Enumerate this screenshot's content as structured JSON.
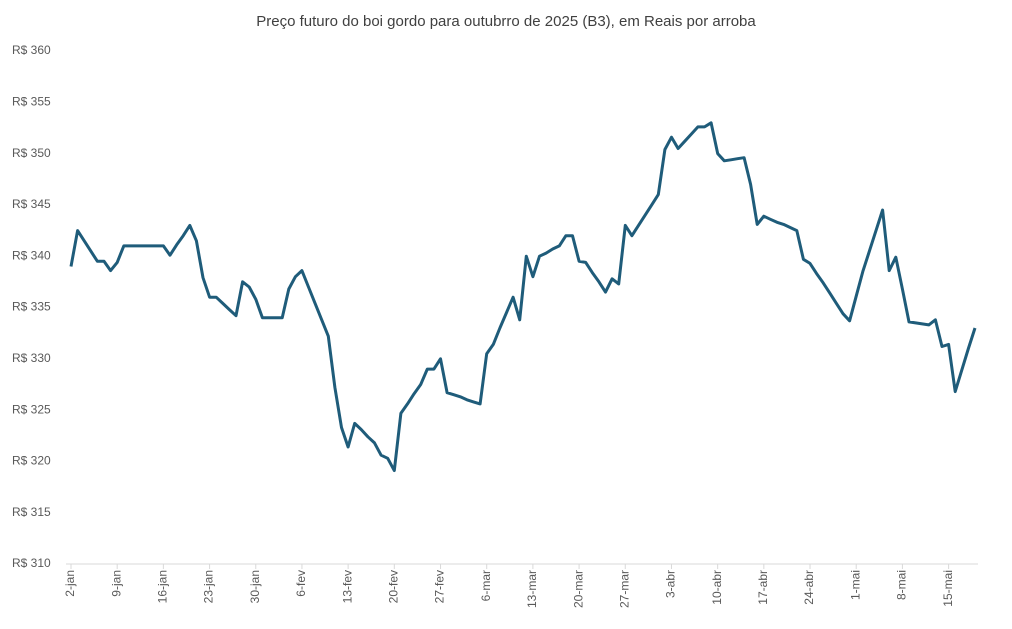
{
  "chart_data": {
    "type": "line",
    "title": "Preço futuro do boi gordo para outubrro de 2025 (B3), em Reais por arroba",
    "categories": [
      "2-jan",
      null,
      null,
      null,
      null,
      null,
      null,
      "9-jan",
      null,
      null,
      null,
      null,
      null,
      null,
      "16-jan",
      null,
      null,
      null,
      null,
      null,
      null,
      "23-jan",
      null,
      null,
      null,
      null,
      null,
      null,
      "30-jan",
      null,
      null,
      null,
      null,
      null,
      null,
      "6-fev",
      null,
      null,
      null,
      null,
      null,
      null,
      "13-fev",
      null,
      null,
      null,
      null,
      null,
      null,
      "20-fev",
      null,
      null,
      null,
      null,
      null,
      null,
      "27-fev",
      null,
      null,
      null,
      null,
      null,
      null,
      "6-mar",
      null,
      null,
      null,
      null,
      null,
      null,
      "13-mar",
      null,
      null,
      null,
      null,
      null,
      null,
      "20-mar",
      null,
      null,
      null,
      null,
      null,
      null,
      "27-mar",
      null,
      null,
      null,
      null,
      null,
      null,
      "3-abr",
      null,
      null,
      null,
      null,
      null,
      null,
      "10-abr",
      null,
      null,
      null,
      null,
      null,
      null,
      "17-abr",
      null,
      null,
      null,
      null,
      null,
      null,
      "24-abr",
      null,
      null,
      null,
      null,
      null,
      null,
      "1-mai",
      null,
      null,
      null,
      null,
      null,
      null,
      "8-mai",
      null,
      null,
      null,
      null,
      null,
      null,
      "15-mai",
      null,
      null,
      null,
      null
    ],
    "values": [
      339,
      342.5,
      341.5,
      340.5,
      339.5,
      339.5,
      338.6,
      339.4,
      341,
      341,
      341,
      341,
      341,
      341,
      341,
      340.1,
      341.1,
      342,
      343,
      341.5,
      337.9,
      336,
      336,
      335.4,
      334.8,
      334.2,
      337.5,
      337,
      335.8,
      334,
      334,
      334,
      334,
      336.8,
      338,
      338.6,
      337,
      335.4,
      333.8,
      332.2,
      327.2,
      323.3,
      321.4,
      323.7,
      323.1,
      322.4,
      321.8,
      320.6,
      320.3,
      319.1,
      324.7,
      325.6,
      326.6,
      327.5,
      329,
      329,
      330,
      326.7,
      326.5,
      326.3,
      326,
      325.8,
      325.6,
      330.5,
      331.4,
      333,
      334.5,
      336,
      333.8,
      340,
      338,
      340,
      340.3,
      340.7,
      341,
      342,
      342,
      339.5,
      339.4,
      338.4,
      337.5,
      336.5,
      337.8,
      337.3,
      343,
      342,
      343,
      344,
      345,
      346,
      350.4,
      351.6,
      350.5,
      351.2,
      351.9,
      352.6,
      352.6,
      353,
      350,
      349.3,
      349.4,
      349.5,
      349.6,
      347,
      343.1,
      343.9,
      343.6,
      343.3,
      343.1,
      342.8,
      342.5,
      339.7,
      339.3,
      338.3,
      337.4,
      336.4,
      335.4,
      334.4,
      333.7,
      336.1,
      338.5,
      340.5,
      342.5,
      344.5,
      338.6,
      339.9,
      336.8,
      333.6,
      333.5,
      333.4,
      333.3,
      333.8,
      331.2,
      331.4,
      326.8,
      328.9,
      331,
      333
    ],
    "color": "#1f5c7a",
    "ylim": [
      310,
      360
    ],
    "yticks": [
      {
        "value": 310,
        "label": "R$ 310"
      },
      {
        "value": 315,
        "label": "R$ 315"
      },
      {
        "value": 320,
        "label": "R$ 320"
      },
      {
        "value": 325,
        "label": "R$ 325"
      },
      {
        "value": 330,
        "label": "R$ 330"
      },
      {
        "value": 335,
        "label": "R$ 335"
      },
      {
        "value": 340,
        "label": "R$ 340"
      },
      {
        "value": 345,
        "label": "R$ 345"
      },
      {
        "value": 350,
        "label": "R$ 350"
      },
      {
        "value": 355,
        "label": "R$ 355"
      },
      {
        "value": 360,
        "label": "R$ 360"
      }
    ],
    "grid": false
  }
}
